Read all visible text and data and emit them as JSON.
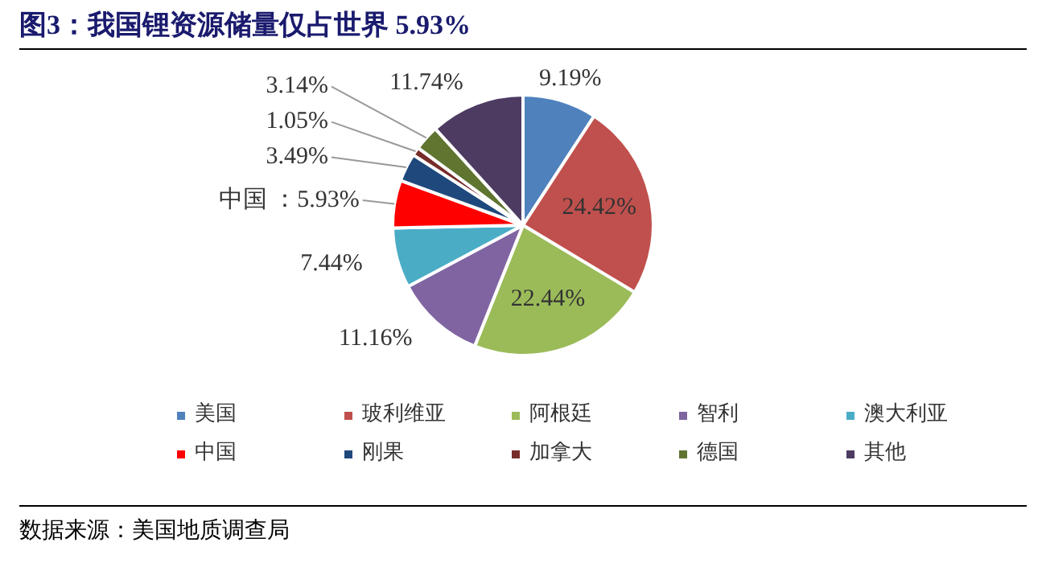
{
  "chart_data": {
    "type": "pie",
    "title": "图3：我国锂资源储量仅占世界 5.93%",
    "categories": [
      "美国",
      "玻利维亚",
      "阿根廷",
      "智利",
      "澳大利亚",
      "中国",
      "刚果",
      "加拿大",
      "德国",
      "其他"
    ],
    "values": [
      9.19,
      24.42,
      22.44,
      11.16,
      7.44,
      5.93,
      3.49,
      1.05,
      3.14,
      11.74
    ],
    "colors": [
      "#4f81bd",
      "#c0504d",
      "#9bbb59",
      "#8064a2",
      "#4bacc6",
      "#ff0000",
      "#1f497d",
      "#772c2a",
      "#5f7530",
      "#4d3b62"
    ],
    "value_labels": [
      "9.19%",
      "24.42%",
      "22.44%",
      "11.16%",
      "7.44%",
      "中国 ：5.93%",
      "3.49%",
      "1.05%",
      "3.14%",
      "11.74%"
    ],
    "legend": "bottom",
    "annotations": [
      "数据来源：美国地质调查局"
    ]
  }
}
